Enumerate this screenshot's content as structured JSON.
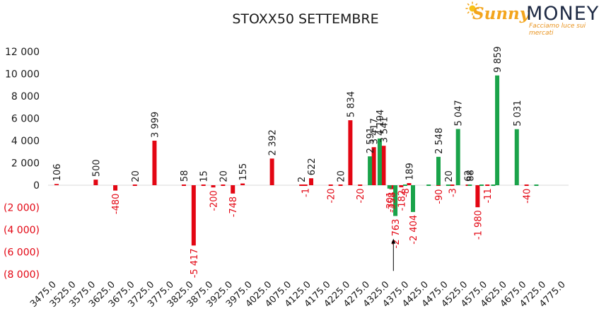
{
  "brand": {
    "word1": "Sunny",
    "word2": "MONEY",
    "tagline": "Facciamo luce sui mercati",
    "color_sunny": "#f3a51d",
    "color_money": "#1e2a44"
  },
  "chart_data": {
    "type": "bar",
    "title": "STOXX50 SETTEMBRE",
    "colors": {
      "red": "#e30613",
      "green": "#1aa34a",
      "neg_label": "#e30613",
      "pos_label": "#1a1a1a",
      "axis_neg": "#e30613"
    },
    "ylim": [
      -8000,
      12000
    ],
    "yticks": [
      {
        "value": 12000,
        "label": "12 000"
      },
      {
        "value": 10000,
        "label": "10 000"
      },
      {
        "value": 8000,
        "label": "8 000"
      },
      {
        "value": 6000,
        "label": "6 000"
      },
      {
        "value": 4000,
        "label": "4 000"
      },
      {
        "value": 2000,
        "label": "2 000"
      },
      {
        "value": 0,
        "label": "0"
      },
      {
        "value": -2000,
        "label": "(2 000)"
      },
      {
        "value": -4000,
        "label": "(4 000)"
      },
      {
        "value": -6000,
        "label": "(6 000)"
      },
      {
        "value": -8000,
        "label": "(8 000)"
      }
    ],
    "categories": [
      "3475.0",
      "3525.0",
      "3575.0",
      "3625.0",
      "3675.0",
      "3725.0",
      "3775.0",
      "3825.0",
      "3875.0",
      "3925.0",
      "3975.0",
      "4025.0",
      "4075.0",
      "4125.0",
      "4175.0",
      "4225.0",
      "4275.0",
      "4325.0",
      "4375.0",
      "4425.0",
      "4475.0",
      "4525.0",
      "4575.0",
      "4625.0",
      "4675.0",
      "4725.0",
      "4775.0"
    ],
    "series": [
      {
        "color": "red",
        "points": [
          {
            "x": 3475,
            "value": 106,
            "label": "106"
          },
          {
            "x": 3575,
            "value": 500,
            "label": "500"
          },
          {
            "x": 3625,
            "value": -480,
            "label": "-480"
          },
          {
            "x": 3675,
            "value": 20,
            "label": "20"
          },
          {
            "x": 3725,
            "value": 3999,
            "label": "3 999"
          },
          {
            "x": 3800,
            "value": 58,
            "label": "58"
          },
          {
            "x": 3825,
            "value": -5417,
            "label": "-5 417"
          },
          {
            "x": 3850,
            "value": 15,
            "label": "15"
          },
          {
            "x": 3875,
            "value": -200,
            "label": "-200"
          },
          {
            "x": 3900,
            "value": 20,
            "label": "20"
          },
          {
            "x": 3925,
            "value": -748,
            "label": "-748"
          },
          {
            "x": 3950,
            "value": 155,
            "label": "155"
          },
          {
            "x": 4025,
            "value": 2392,
            "label": "2 392"
          },
          {
            "x": 4100,
            "value": 2,
            "label": "2"
          },
          {
            "x": 4110,
            "value": -1,
            "label": "-1"
          },
          {
            "x": 4125,
            "value": 622,
            "label": "622"
          },
          {
            "x": 4175,
            "value": -20,
            "label": "-20"
          },
          {
            "x": 4200,
            "value": 20,
            "label": "20"
          },
          {
            "x": 4225,
            "value": 5834,
            "label": "5 834"
          },
          {
            "x": 4250,
            "value": -20,
            "label": "-20"
          },
          {
            "x": 4285,
            "value": 3417,
            "label": "3 417"
          },
          {
            "x": 4310,
            "value": 3541,
            "label": "3 541"
          },
          {
            "x": 4330,
            "value": -358,
            "label": "-358"
          },
          {
            "x": 4355,
            "value": -182,
            "label": "-182"
          },
          {
            "x": 4375,
            "value": 189,
            "label": "189"
          },
          {
            "x": 4450,
            "value": -90,
            "label": "-90"
          },
          {
            "x": 4485,
            "value": -3,
            "label": "-3"
          },
          {
            "x": 4525,
            "value": 62,
            "label": "62"
          },
          {
            "x": 4550,
            "value": -1980,
            "label": "-1 980"
          },
          {
            "x": 4575,
            "value": -11,
            "label": "-11"
          },
          {
            "x": 4675,
            "value": -40,
            "label": "-40"
          }
        ]
      },
      {
        "color": "green",
        "points": [
          {
            "x": 4275,
            "value": 2591,
            "label": "2 591"
          },
          {
            "x": 4300,
            "value": 4194,
            "label": "4 194"
          },
          {
            "x": 4325,
            "value": -301,
            "label": "-301"
          },
          {
            "x": 4340,
            "value": -2763,
            "label": "-2 763"
          },
          {
            "x": 4365,
            "value": -8,
            "label": "-8"
          },
          {
            "x": 4385,
            "value": -2404,
            "label": "-2 404"
          },
          {
            "x": 4425,
            "value": -5,
            "label": ""
          },
          {
            "x": 4450,
            "value": 2548,
            "label": "2 548"
          },
          {
            "x": 4475,
            "value": 20,
            "label": "20"
          },
          {
            "x": 4500,
            "value": 5047,
            "label": "5 047"
          },
          {
            "x": 4530,
            "value": 88,
            "label": "88"
          },
          {
            "x": 4560,
            "value": -2,
            "label": ""
          },
          {
            "x": 4590,
            "value": -5,
            "label": ""
          },
          {
            "x": 4600,
            "value": 9859,
            "label": "9 859"
          },
          {
            "x": 4650,
            "value": 5031,
            "label": "5 031"
          },
          {
            "x": 4700,
            "value": -5,
            "label": ""
          }
        ]
      }
    ],
    "annotation": {
      "type": "arrow",
      "x": 4335,
      "from_value": -7700,
      "to_value": -4800
    }
  }
}
